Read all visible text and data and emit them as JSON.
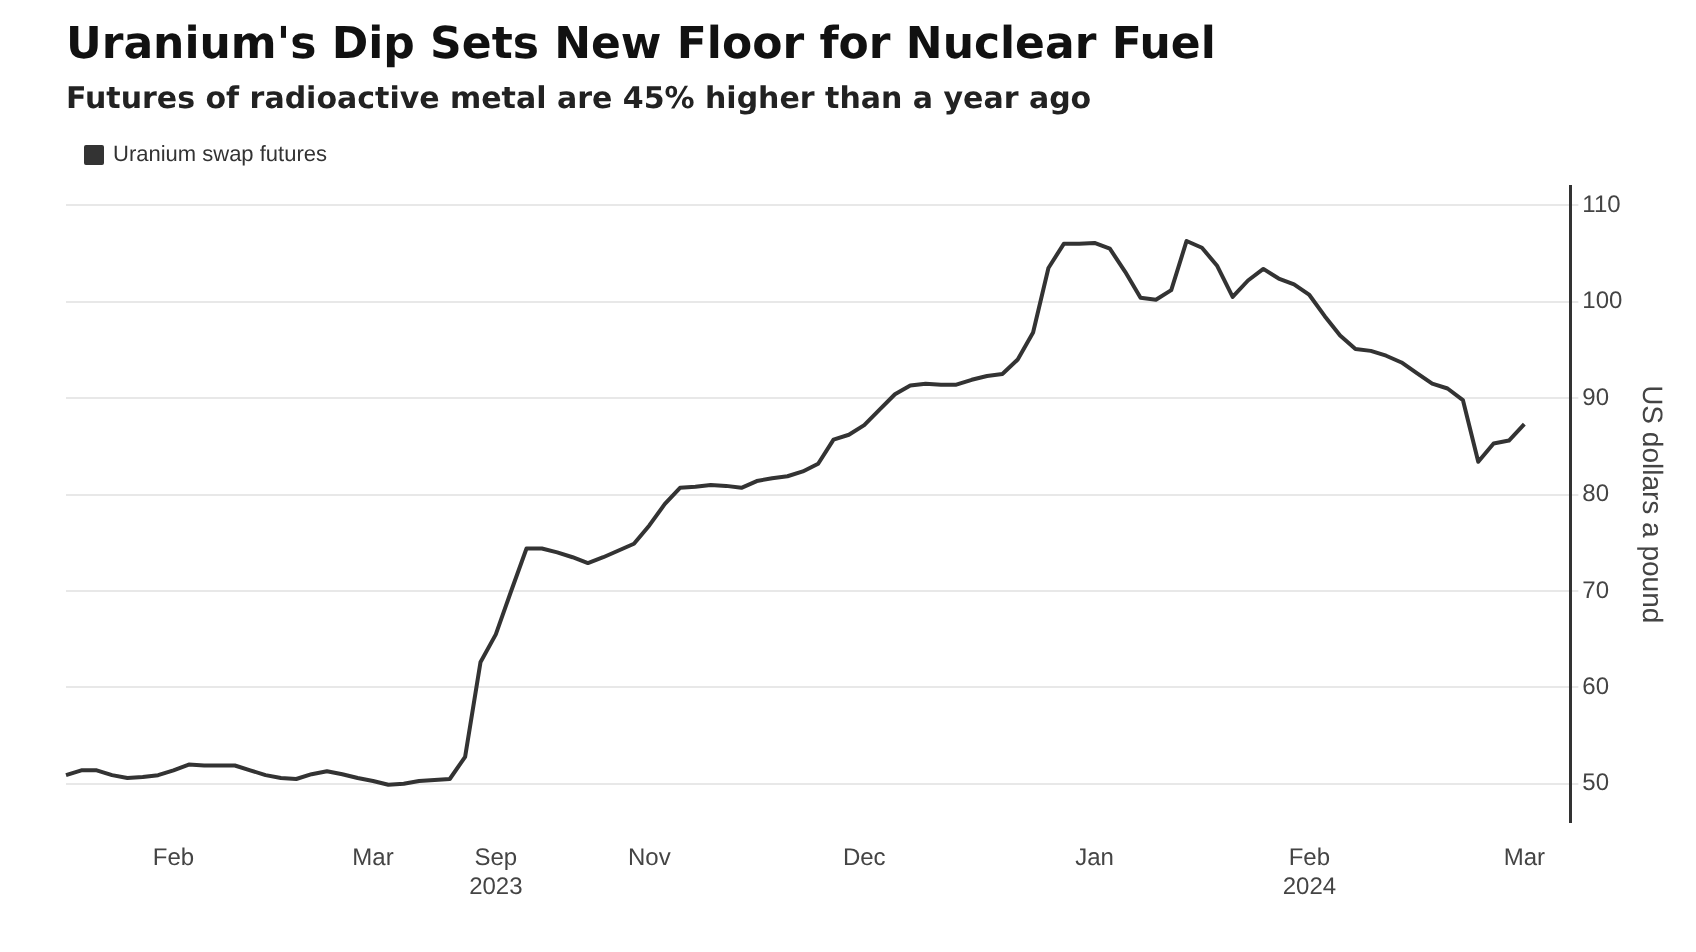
{
  "chart_data": {
    "type": "line",
    "title": "Uranium's Dip Sets New Floor for Nuclear Fuel",
    "subtitle": "Futures of radioactive metal are 45% higher than a year ago",
    "ylabel": "US dollars a pound",
    "categories": [
      null,
      null,
      null,
      null,
      null,
      null,
      null,
      "Feb",
      null,
      null,
      null,
      null,
      null,
      null,
      null,
      null,
      null,
      null,
      null,
      null,
      "Mar",
      null,
      null,
      null,
      null,
      null,
      null,
      null,
      "Sep\n2023",
      null,
      null,
      null,
      null,
      null,
      null,
      null,
      null,
      null,
      "Nov",
      null,
      null,
      null,
      null,
      null,
      null,
      null,
      null,
      null,
      null,
      null,
      null,
      null,
      "Dec",
      null,
      null,
      null,
      null,
      null,
      null,
      null,
      null,
      null,
      null,
      null,
      null,
      null,
      null,
      "Jan",
      null,
      null,
      null,
      null,
      null,
      null,
      null,
      null,
      null,
      null,
      null,
      null,
      null,
      "Feb\n2024",
      null,
      null,
      null,
      null,
      null,
      null,
      null,
      null,
      null,
      null,
      null,
      null,
      null,
      "Mar",
      null,
      null,
      null
    ],
    "series": [
      {
        "name": "Uranium swap futures",
        "color": "#333333",
        "values": [
          50.9,
          51.4,
          51.4,
          50.9,
          50.6,
          50.7,
          50.9,
          51.4,
          52.0,
          51.9,
          51.9,
          51.9,
          51.4,
          50.9,
          50.6,
          50.5,
          51.0,
          51.3,
          51.0,
          50.6,
          50.3,
          49.9,
          50.0,
          50.3,
          50.4,
          50.5,
          52.8,
          62.6,
          65.5,
          70.0,
          74.4,
          74.4,
          74.0,
          73.5,
          72.9,
          73.5,
          74.2,
          74.9,
          76.8,
          79.0,
          80.7,
          80.8,
          81.0,
          80.9,
          80.7,
          81.4,
          81.7,
          81.9,
          82.4,
          83.2,
          85.7,
          86.2,
          87.2,
          88.8,
          90.4,
          91.3,
          91.5,
          91.4,
          91.4,
          91.9,
          92.3,
          92.5,
          94.0,
          96.8,
          103.5,
          106.0,
          106.0,
          106.1,
          105.5,
          103.1,
          100.4,
          100.2,
          101.2,
          106.3,
          105.6,
          103.7,
          100.5,
          102.2,
          103.4,
          102.4,
          101.8,
          100.7,
          98.5,
          96.5,
          95.1,
          94.9,
          94.4,
          93.7,
          92.6,
          91.5,
          91.0,
          89.8,
          83.4,
          85.3,
          85.6,
          87.3,
          null,
          null,
          null
        ]
      }
    ],
    "ylim": [
      46,
      112
    ],
    "yticks": [
      50,
      60,
      70,
      80,
      90,
      100,
      110
    ],
    "grid": "y",
    "legend": "top left",
    "marker": "none",
    "line_style": "solid"
  }
}
